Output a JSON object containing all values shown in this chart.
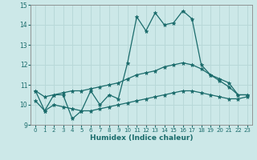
{
  "xlabel": "Humidex (Indice chaleur)",
  "ylabel": "",
  "xlim": [
    -0.5,
    23.5
  ],
  "ylim": [
    9,
    15
  ],
  "yticks": [
    9,
    10,
    11,
    12,
    13,
    14,
    15
  ],
  "xticks": [
    0,
    1,
    2,
    3,
    4,
    5,
    6,
    7,
    8,
    9,
    10,
    11,
    12,
    13,
    14,
    15,
    16,
    17,
    18,
    19,
    20,
    21,
    22,
    23
  ],
  "background_color": "#cce8e8",
  "grid_color": "#b8d8d8",
  "line_color": "#1a6b6b",
  "line1": {
    "x": [
      0,
      1,
      2,
      3,
      4,
      5,
      6,
      7,
      8,
      9,
      10,
      11,
      12,
      13,
      14,
      15,
      16,
      17,
      18,
      19,
      20,
      21,
      22,
      23
    ],
    "y": [
      10.7,
      9.7,
      10.5,
      10.5,
      9.3,
      9.7,
      10.7,
      10.0,
      10.5,
      10.3,
      12.1,
      14.4,
      13.7,
      14.6,
      14.0,
      14.1,
      14.7,
      14.3,
      12.0,
      11.5,
      11.2,
      10.9,
      10.5,
      10.5
    ]
  },
  "line2": {
    "x": [
      0,
      1,
      2,
      3,
      4,
      5,
      6,
      7,
      8,
      9,
      10,
      11,
      12,
      13,
      14,
      15,
      16,
      17,
      18,
      19,
      20,
      21,
      22,
      23
    ],
    "y": [
      10.7,
      10.4,
      10.5,
      10.6,
      10.7,
      10.7,
      10.8,
      10.9,
      11.0,
      11.1,
      11.3,
      11.5,
      11.6,
      11.7,
      11.9,
      12.0,
      12.1,
      12.0,
      11.8,
      11.5,
      11.3,
      11.1,
      10.5,
      10.5
    ]
  },
  "line3": {
    "x": [
      0,
      1,
      2,
      3,
      4,
      5,
      6,
      7,
      8,
      9,
      10,
      11,
      12,
      13,
      14,
      15,
      16,
      17,
      18,
      19,
      20,
      21,
      22,
      23
    ],
    "y": [
      10.2,
      9.7,
      10.0,
      9.9,
      9.8,
      9.7,
      9.7,
      9.8,
      9.9,
      10.0,
      10.1,
      10.2,
      10.3,
      10.4,
      10.5,
      10.6,
      10.7,
      10.7,
      10.6,
      10.5,
      10.4,
      10.3,
      10.3,
      10.4
    ]
  }
}
